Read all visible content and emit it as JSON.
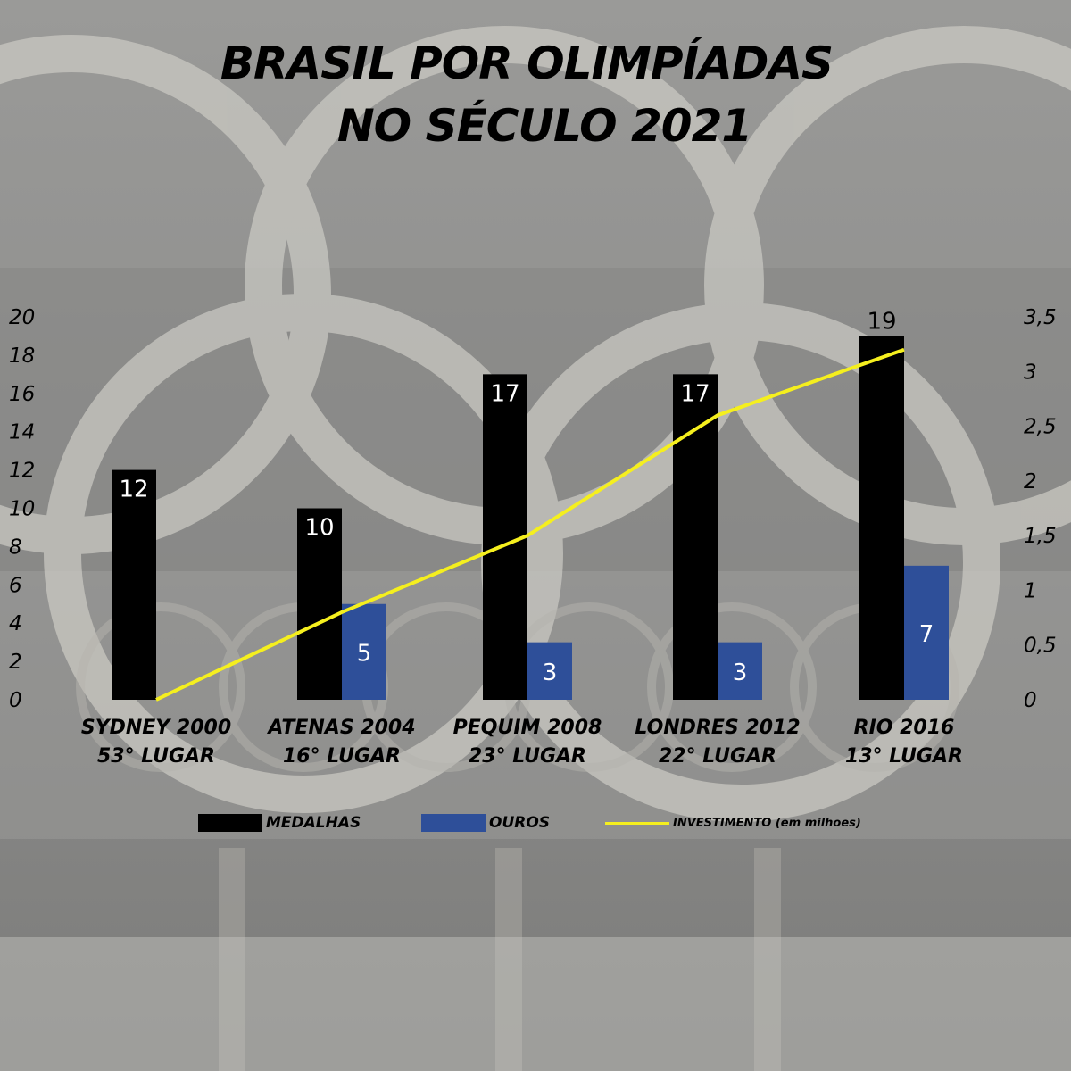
{
  "title_line1": "BRASIL POR OLIMPÍADAS",
  "title_line2": "NO SÉCULO 2021",
  "chart_data": {
    "type": "bar",
    "categories": [
      [
        "SYDNEY 2000",
        "53° LUGAR"
      ],
      [
        "ATENAS 2004",
        "16° LUGAR"
      ],
      [
        "PEQUIM 2008",
        "23° LUGAR"
      ],
      [
        "LONDRES 2012",
        "22° LUGAR"
      ],
      [
        "RIO 2016",
        "13° LUGAR"
      ]
    ],
    "series": [
      {
        "name": "MEDALHAS",
        "type": "bar",
        "axis": "left",
        "color": "#000000",
        "values": [
          12,
          10,
          17,
          17,
          19
        ],
        "labels": [
          "12",
          "10",
          "17",
          "17",
          "19"
        ]
      },
      {
        "name": "OUROS",
        "type": "bar",
        "axis": "left",
        "color": "#2e4f99",
        "values": [
          0,
          5,
          3,
          3,
          7
        ],
        "labels": [
          "",
          "5",
          "3",
          "3",
          "7"
        ]
      },
      {
        "name": "INVESTIMENTO (em milhões)",
        "type": "line",
        "axis": "right",
        "color": "#f5ef1e",
        "values": [
          0,
          0.8,
          1.5,
          2.6,
          3.2
        ]
      }
    ],
    "y_left": {
      "ylim": [
        0,
        20
      ],
      "ticks": [
        "0",
        "2",
        "4",
        "6",
        "8",
        "10",
        "12",
        "14",
        "16",
        "18",
        "20"
      ]
    },
    "y_right": {
      "ylim": [
        0,
        3.5
      ],
      "ticks": [
        "0",
        "0,5",
        "1",
        "1,5",
        "2",
        "2,5",
        "3",
        "3,5"
      ]
    },
    "legend_position": "bottom",
    "grid": false
  },
  "legend": {
    "medalhas": "MEDALHAS",
    "ouros": "OUROS",
    "investimento": "INVESTIMENTO (em milhões)"
  },
  "colors": {
    "medalhas": "#000000",
    "ouros": "#2e4f99",
    "investimento": "#f5ef1e"
  },
  "background": "olympic-rings-photo"
}
